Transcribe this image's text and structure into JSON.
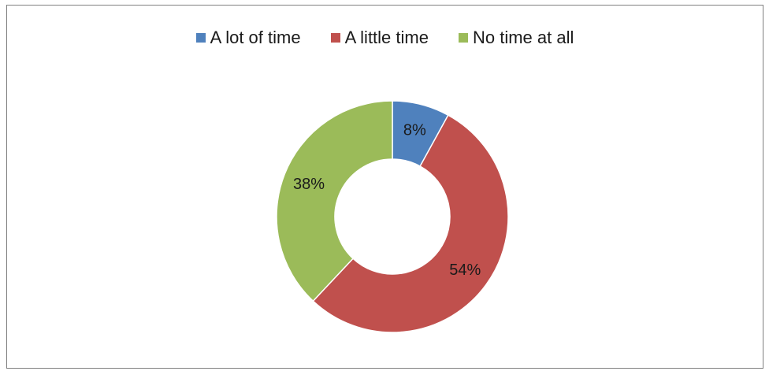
{
  "chart_data": {
    "type": "pie",
    "variant": "donut",
    "categories": [
      "A lot of time",
      "A little time",
      "No time at all"
    ],
    "values": [
      8,
      54,
      38
    ],
    "value_labels": [
      "8%",
      "54%",
      "38%"
    ],
    "colors": [
      "#4f81bd",
      "#c0504d",
      "#9bbb59"
    ],
    "title": "",
    "legend_position": "top"
  }
}
